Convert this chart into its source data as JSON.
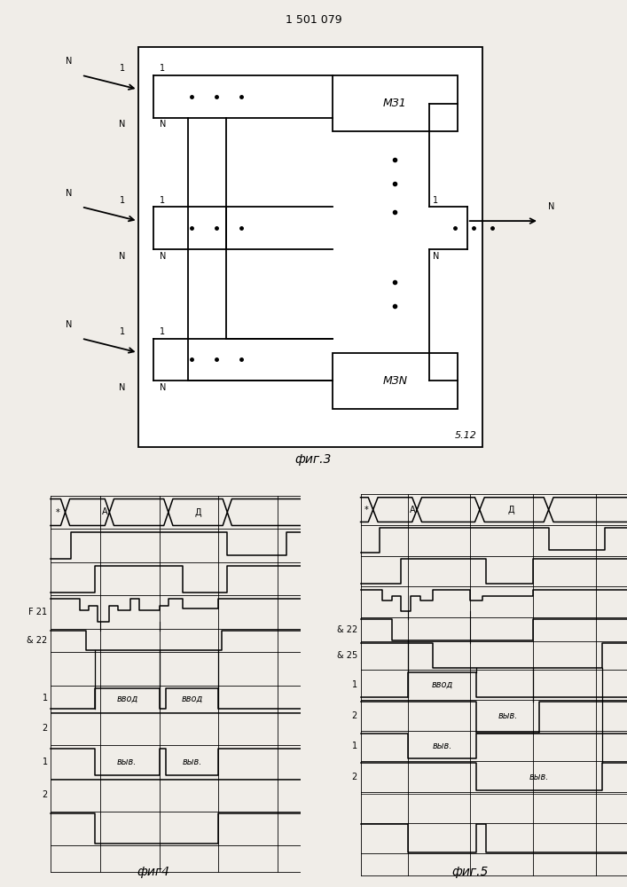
{
  "title": "1 501 079",
  "bg": "#f0ede8",
  "fig3_caption": "фиг.3",
  "fig4_caption": "фиг4",
  "fig5_caption": "фиг.5",
  "mz1_label": "МЗ1",
  "mzn_label": "МЗN",
  "label_512": "5.12"
}
